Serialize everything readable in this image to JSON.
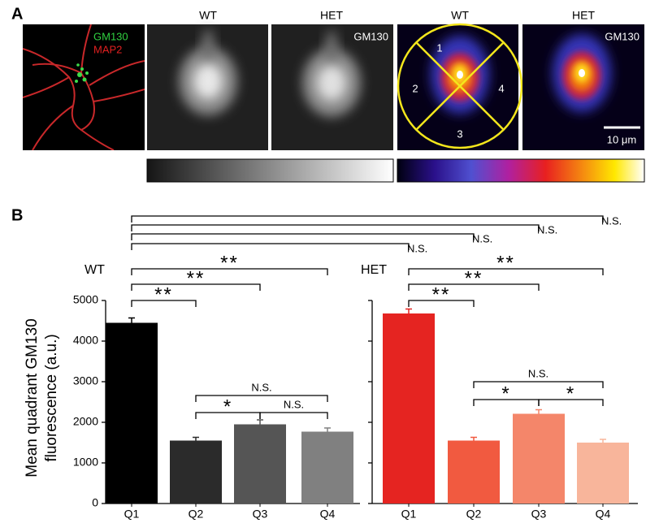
{
  "panel_a": {
    "label": "A",
    "col_titles": [
      "WT",
      "HET",
      "WT",
      "HET"
    ],
    "overlay_labels": [
      "GM130",
      "MAP2"
    ],
    "corner_labels": [
      "GM130",
      "GM130"
    ],
    "quadrant_labels": [
      "1",
      "2",
      "3",
      "4"
    ],
    "scale_bar": "10 μm"
  },
  "panel_b_label": "B",
  "chart_data": [
    {
      "type": "bar",
      "title": "WT",
      "categories": [
        "Q1",
        "Q2",
        "Q3",
        "Q4"
      ],
      "values": [
        4450,
        1550,
        1950,
        1770
      ],
      "errors": [
        120,
        80,
        110,
        90
      ],
      "colors": [
        "#000000",
        "#2b2b2b",
        "#555555",
        "#808080"
      ],
      "ylim": [
        0,
        5000
      ],
      "yticks": [
        0,
        1000,
        2000,
        3000,
        4000,
        5000
      ],
      "show_tick_labels": true,
      "ylabel": [
        "Mean quadrant GM130",
        "fluorescence (a.u.)"
      ],
      "comparisons": [
        {
          "pair": [
            0,
            1
          ],
          "label": "**"
        },
        {
          "pair": [
            0,
            2
          ],
          "label": "**"
        },
        {
          "pair": [
            0,
            3
          ],
          "label": "**"
        },
        {
          "pair": [
            1,
            2
          ],
          "label": "*"
        },
        {
          "pair": [
            2,
            3
          ],
          "label": "N.S."
        },
        {
          "pair": [
            1,
            3
          ],
          "label": "N.S."
        }
      ]
    },
    {
      "type": "bar",
      "title": "HET",
      "categories": [
        "Q1",
        "Q2",
        "Q3",
        "Q4"
      ],
      "values": [
        4680,
        1550,
        2210,
        1500
      ],
      "errors": [
        110,
        80,
        100,
        80
      ],
      "colors": [
        "#e52421",
        "#f15a40",
        "#f4866a",
        "#f8b59b"
      ],
      "ylim": [
        0,
        5000
      ],
      "yticks": [
        0,
        1000,
        2000,
        3000,
        4000,
        5000
      ],
      "show_tick_labels": false,
      "comparisons": [
        {
          "pair": [
            0,
            1
          ],
          "label": "**"
        },
        {
          "pair": [
            0,
            2
          ],
          "label": "**"
        },
        {
          "pair": [
            0,
            3
          ],
          "label": "**"
        },
        {
          "pair": [
            1,
            2
          ],
          "label": "*"
        },
        {
          "pair": [
            2,
            3
          ],
          "label": "*"
        },
        {
          "pair": [
            1,
            3
          ],
          "label": "N.S."
        }
      ]
    }
  ],
  "cross_comparisons": [
    {
      "pair": [
        0,
        0
      ],
      "label": "N.S."
    },
    {
      "pair": [
        0,
        1
      ],
      "label": "N.S."
    },
    {
      "pair": [
        0,
        2
      ],
      "label": "N.S."
    },
    {
      "pair": [
        0,
        3
      ],
      "label": "N.S."
    }
  ]
}
